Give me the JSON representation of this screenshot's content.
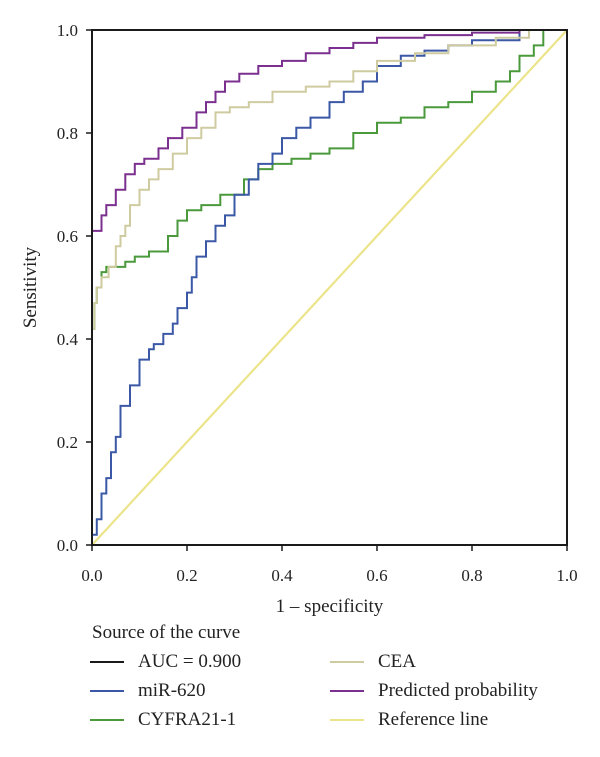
{
  "chart_data": {
    "type": "line",
    "xlabel": "1 – specificity",
    "ylabel": "Sensitivity",
    "xlim": [
      0,
      1
    ],
    "ylim": [
      0,
      1
    ],
    "x_ticks": [
      "0.0",
      "0.2",
      "0.4",
      "0.6",
      "0.8",
      "1.0"
    ],
    "y_ticks": [
      "0.0",
      "0.2",
      "0.4",
      "0.6",
      "0.8",
      "1.0"
    ],
    "grid": false,
    "legend_position": "bottom",
    "legend_title": "Source of the curve",
    "legend": [
      {
        "label": "AUC = 0.900",
        "color": "#1a1a1a"
      },
      {
        "label": "CEA",
        "color": "#cfcba0"
      },
      {
        "label": "miR-620",
        "color": "#3b58a6"
      },
      {
        "label": "Predicted probability",
        "color": "#7b2f8e"
      },
      {
        "label": "CYFRA21-1",
        "color": "#4a9a3c"
      },
      {
        "label": "Reference line",
        "color": "#ece48a"
      }
    ],
    "series": [
      {
        "name": "Predicted probability",
        "color": "#7b2f8e",
        "points": [
          [
            0.0,
            0.59
          ],
          [
            0.02,
            0.61
          ],
          [
            0.03,
            0.64
          ],
          [
            0.05,
            0.66
          ],
          [
            0.07,
            0.69
          ],
          [
            0.09,
            0.72
          ],
          [
            0.11,
            0.74
          ],
          [
            0.14,
            0.75
          ],
          [
            0.16,
            0.77
          ],
          [
            0.19,
            0.79
          ],
          [
            0.22,
            0.81
          ],
          [
            0.24,
            0.84
          ],
          [
            0.26,
            0.86
          ],
          [
            0.28,
            0.88
          ],
          [
            0.31,
            0.9
          ],
          [
            0.35,
            0.915
          ],
          [
            0.4,
            0.93
          ],
          [
            0.45,
            0.94
          ],
          [
            0.5,
            0.955
          ],
          [
            0.55,
            0.965
          ],
          [
            0.6,
            0.975
          ],
          [
            0.7,
            0.985
          ],
          [
            0.8,
            0.99
          ],
          [
            0.9,
            0.995
          ],
          [
            1.0,
            1.0
          ]
        ]
      },
      {
        "name": "CEA",
        "color": "#cfcba0",
        "points": [
          [
            0.0,
            0.34
          ],
          [
            0.005,
            0.42
          ],
          [
            0.01,
            0.47
          ],
          [
            0.02,
            0.5
          ],
          [
            0.035,
            0.52
          ],
          [
            0.05,
            0.54
          ],
          [
            0.06,
            0.58
          ],
          [
            0.07,
            0.6
          ],
          [
            0.08,
            0.62
          ],
          [
            0.1,
            0.66
          ],
          [
            0.12,
            0.69
          ],
          [
            0.14,
            0.71
          ],
          [
            0.17,
            0.73
          ],
          [
            0.2,
            0.76
          ],
          [
            0.23,
            0.79
          ],
          [
            0.26,
            0.81
          ],
          [
            0.29,
            0.84
          ],
          [
            0.33,
            0.85
          ],
          [
            0.38,
            0.86
          ],
          [
            0.45,
            0.88
          ],
          [
            0.5,
            0.89
          ],
          [
            0.55,
            0.9
          ],
          [
            0.6,
            0.92
          ],
          [
            0.68,
            0.94
          ],
          [
            0.75,
            0.955
          ],
          [
            0.85,
            0.97
          ],
          [
            0.92,
            0.985
          ],
          [
            1.0,
            1.0
          ]
        ]
      },
      {
        "name": "miR-620",
        "color": "#3b58a6",
        "points": [
          [
            0.0,
            0.0
          ],
          [
            0.01,
            0.02
          ],
          [
            0.02,
            0.05
          ],
          [
            0.03,
            0.1
          ],
          [
            0.04,
            0.13
          ],
          [
            0.05,
            0.18
          ],
          [
            0.06,
            0.21
          ],
          [
            0.08,
            0.27
          ],
          [
            0.1,
            0.31
          ],
          [
            0.12,
            0.36
          ],
          [
            0.13,
            0.38
          ],
          [
            0.15,
            0.39
          ],
          [
            0.17,
            0.41
          ],
          [
            0.18,
            0.43
          ],
          [
            0.2,
            0.46
          ],
          [
            0.21,
            0.49
          ],
          [
            0.22,
            0.52
          ],
          [
            0.24,
            0.56
          ],
          [
            0.26,
            0.59
          ],
          [
            0.28,
            0.62
          ],
          [
            0.3,
            0.64
          ],
          [
            0.33,
            0.68
          ],
          [
            0.35,
            0.71
          ],
          [
            0.38,
            0.74
          ],
          [
            0.4,
            0.76
          ],
          [
            0.43,
            0.79
          ],
          [
            0.46,
            0.81
          ],
          [
            0.5,
            0.83
          ],
          [
            0.53,
            0.86
          ],
          [
            0.57,
            0.88
          ],
          [
            0.6,
            0.9
          ],
          [
            0.65,
            0.93
          ],
          [
            0.7,
            0.95
          ],
          [
            0.75,
            0.96
          ],
          [
            0.8,
            0.97
          ],
          [
            0.9,
            0.98
          ],
          [
            1.0,
            1.0
          ]
        ]
      },
      {
        "name": "CYFRA21-1",
        "color": "#4a9a3c",
        "points": [
          [
            0.0,
            0.0
          ],
          [
            0.005,
            0.42
          ],
          [
            0.01,
            0.47
          ],
          [
            0.02,
            0.5
          ],
          [
            0.03,
            0.53
          ],
          [
            0.05,
            0.54
          ],
          [
            0.07,
            0.54
          ],
          [
            0.09,
            0.55
          ],
          [
            0.12,
            0.56
          ],
          [
            0.16,
            0.57
          ],
          [
            0.18,
            0.6
          ],
          [
            0.2,
            0.63
          ],
          [
            0.23,
            0.65
          ],
          [
            0.27,
            0.66
          ],
          [
            0.32,
            0.68
          ],
          [
            0.35,
            0.71
          ],
          [
            0.38,
            0.73
          ],
          [
            0.42,
            0.74
          ],
          [
            0.46,
            0.75
          ],
          [
            0.5,
            0.76
          ],
          [
            0.55,
            0.77
          ],
          [
            0.6,
            0.8
          ],
          [
            0.65,
            0.82
          ],
          [
            0.7,
            0.83
          ],
          [
            0.75,
            0.85
          ],
          [
            0.8,
            0.86
          ],
          [
            0.85,
            0.88
          ],
          [
            0.88,
            0.9
          ],
          [
            0.9,
            0.92
          ],
          [
            0.93,
            0.95
          ],
          [
            0.95,
            0.97
          ],
          [
            1.0,
            1.0
          ]
        ]
      },
      {
        "name": "Reference line",
        "color": "#ece48a",
        "points": [
          [
            0.0,
            0.0
          ],
          [
            1.0,
            1.0
          ]
        ]
      }
    ]
  }
}
